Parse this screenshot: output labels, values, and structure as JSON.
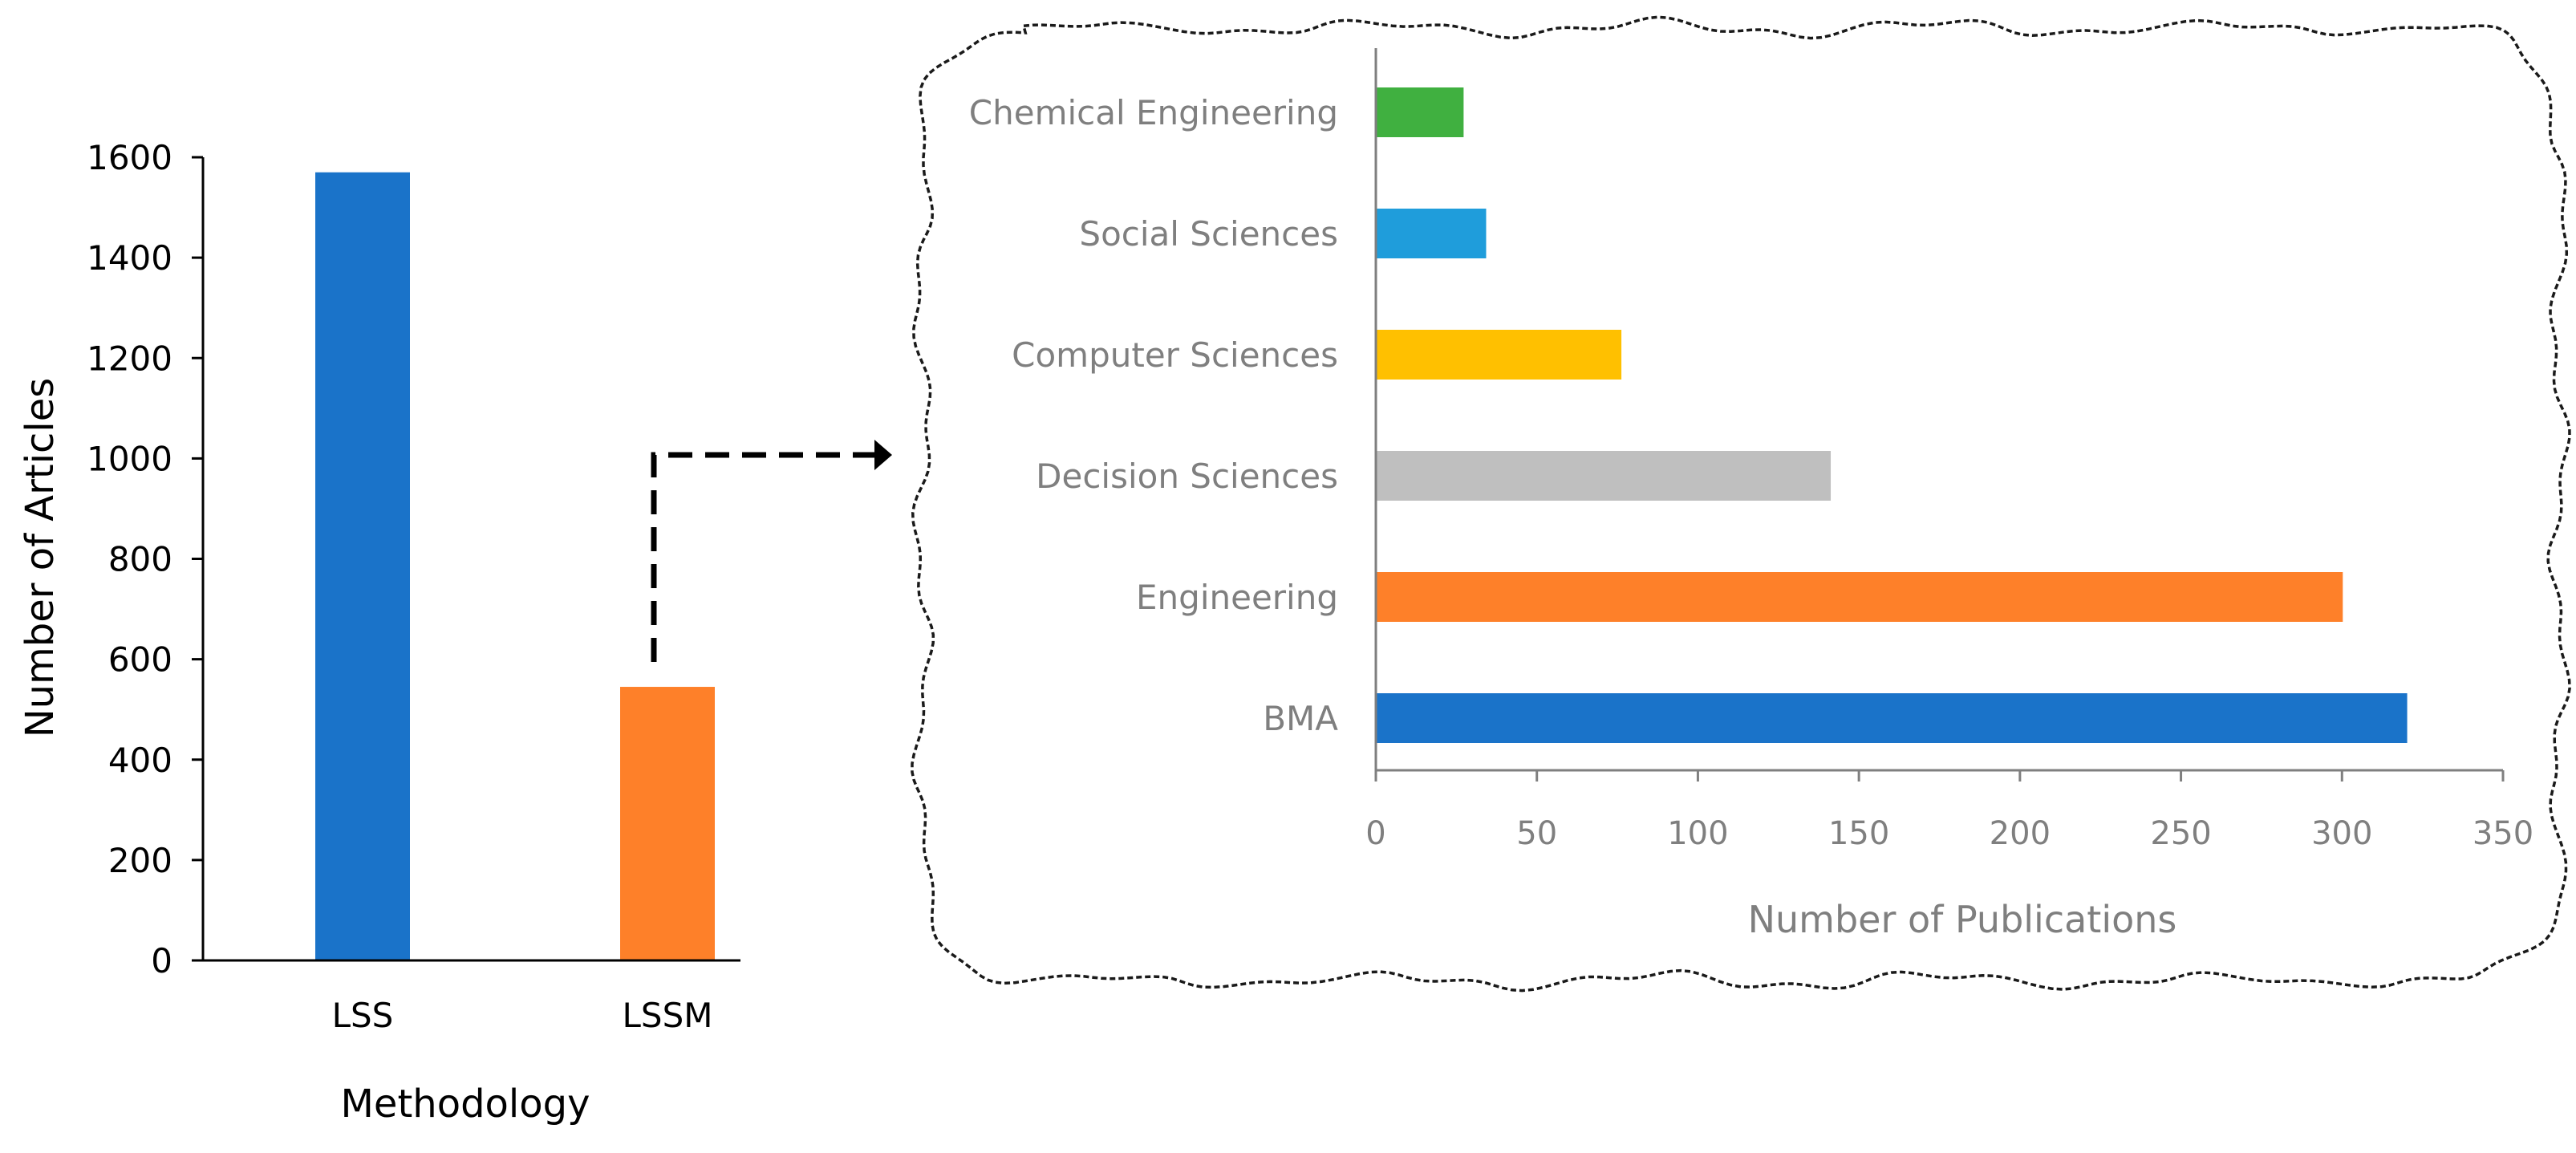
{
  "chart_data": [
    {
      "type": "bar",
      "orientation": "vertical",
      "categories": [
        "LSS",
        "LSSM"
      ],
      "values": [
        1570,
        545
      ],
      "colors": [
        "#1a73c9",
        "#fe8029"
      ],
      "xlabel": "Methodology",
      "ylabel": "Number of Articles",
      "ylim": [
        0,
        1600
      ],
      "yticks": [
        0,
        200,
        400,
        600,
        800,
        1000,
        1200,
        1400,
        1600
      ],
      "grid": false
    },
    {
      "type": "bar",
      "orientation": "horizontal",
      "categories": [
        "BMA",
        "Engineering",
        "Decision Sciences",
        "Computer Sciences",
        "Social Sciences",
        "Chemical Engineering"
      ],
      "values": [
        320,
        300,
        141,
        76,
        34,
        27
      ],
      "colors": [
        "#1a73c9",
        "#fe8029",
        "#bfbfbf",
        "#ffc000",
        "#1f9ddb",
        "#40b040"
      ],
      "xlabel": "Number of Publications",
      "ylabel": "",
      "xlim": [
        0,
        350
      ],
      "xticks": [
        0,
        50,
        100,
        150,
        200,
        250,
        300,
        350
      ],
      "grid": false
    }
  ]
}
